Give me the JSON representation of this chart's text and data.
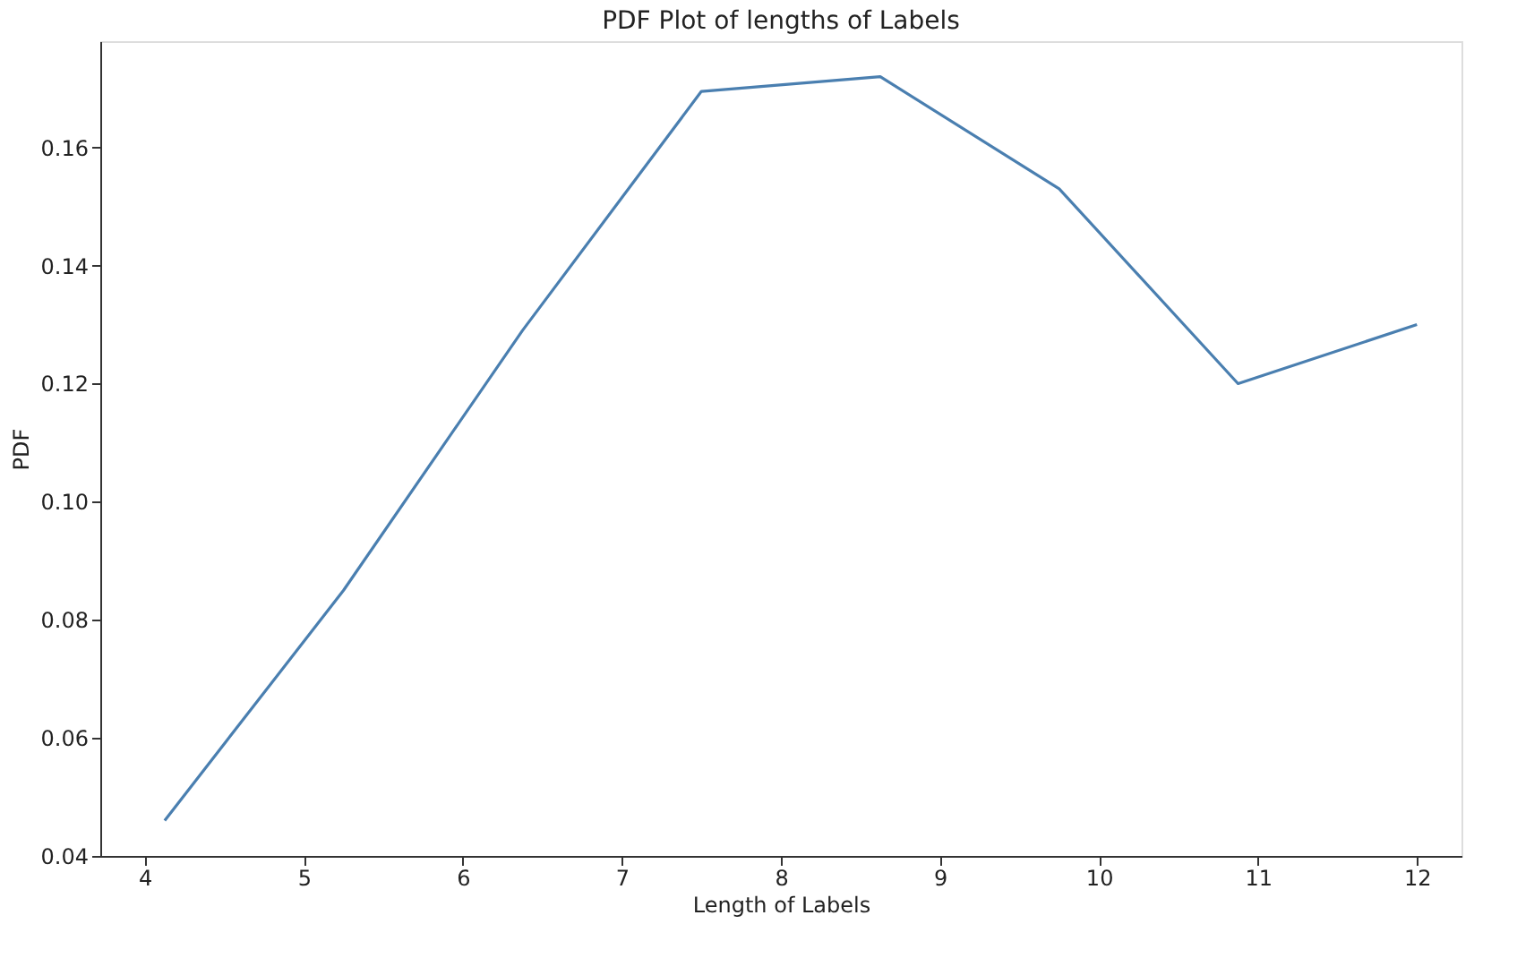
{
  "chart_data": {
    "type": "line",
    "title": "PDF Plot of lengths of Labels",
    "xlabel": "Length of Labels",
    "ylabel": "PDF",
    "x": [
      4.125,
      5.25,
      6.375,
      7.5,
      8.625,
      9.75,
      10.875,
      12
    ],
    "series": [
      {
        "color": "#4a7fb0",
        "values": [
          0.046,
          0.085,
          0.129,
          0.1695,
          0.172,
          0.153,
          0.12,
          0.13
        ]
      }
    ],
    "xlim": [
      3.72,
      12.28
    ],
    "xticks": [
      4,
      5,
      6,
      7,
      8,
      9,
      10,
      11,
      12
    ],
    "ylim": [
      0.04,
      0.178
    ],
    "yticks": [
      {
        "value": 0.04,
        "label": "0.04"
      },
      {
        "value": 0.06,
        "label": "0.06"
      },
      {
        "value": 0.08,
        "label": "0.08"
      },
      {
        "value": 0.1,
        "label": "0.10"
      },
      {
        "value": 0.12,
        "label": "0.12"
      },
      {
        "value": 0.14,
        "label": "0.14"
      },
      {
        "value": 0.16,
        "label": "0.16"
      }
    ],
    "grid": false
  }
}
